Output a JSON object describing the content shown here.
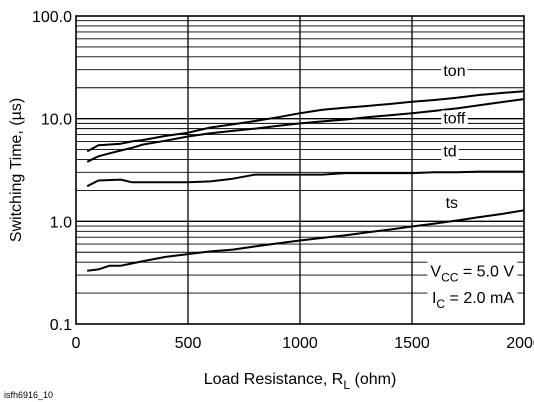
{
  "chart_data": {
    "type": "line",
    "xlabel": "Load Resistance, R",
    "xlabel_sub": "L",
    "xlabel_unit": " (ohm)",
    "ylabel": "Switching Time, (µs)",
    "xlim": [
      0,
      2000
    ],
    "ylim": [
      0.1,
      100
    ],
    "yscale": "log",
    "grid": true,
    "x_ticks": [
      "0",
      "500",
      "1000",
      "1500",
      "2000"
    ],
    "y_ticks": [
      "0.1",
      "1.0",
      "10.0",
      "100.0"
    ],
    "series": [
      {
        "name": "ton",
        "x": [
          50,
          100,
          150,
          200,
          250,
          300,
          400,
          500,
          600,
          700,
          800,
          900,
          1000,
          1100,
          1200,
          1300,
          1400,
          1500,
          1600,
          1700,
          1800,
          1900,
          2000
        ],
        "y": [
          4.8,
          5.5,
          5.6,
          5.7,
          6.0,
          6.2,
          6.8,
          7.3,
          8.2,
          8.8,
          9.5,
          10.3,
          11.3,
          12.2,
          12.8,
          13.3,
          13.9,
          14.6,
          15.2,
          16.0,
          17.0,
          17.8,
          18.5
        ]
      },
      {
        "name": "toff",
        "x": [
          50,
          100,
          150,
          200,
          250,
          300,
          400,
          500,
          600,
          700,
          800,
          900,
          1000,
          1100,
          1200,
          1300,
          1400,
          1500,
          1600,
          1700,
          1800,
          1900,
          2000
        ],
        "y": [
          3.8,
          4.3,
          4.6,
          4.9,
          5.2,
          5.6,
          6.1,
          6.7,
          7.2,
          7.6,
          8.0,
          8.5,
          9.0,
          9.4,
          9.8,
          10.3,
          10.8,
          11.3,
          11.9,
          12.6,
          13.5,
          14.5,
          15.5
        ]
      },
      {
        "name": "td",
        "x": [
          50,
          100,
          200,
          250,
          300,
          400,
          500,
          600,
          700,
          800,
          900,
          1000,
          1100,
          1200,
          1300,
          1400,
          1500,
          1600,
          1700,
          1800,
          1900,
          2000
        ],
        "y": [
          2.2,
          2.5,
          2.55,
          2.4,
          2.4,
          2.4,
          2.4,
          2.45,
          2.6,
          2.85,
          2.85,
          2.85,
          2.85,
          2.95,
          2.95,
          2.95,
          2.95,
          3.0,
          3.0,
          3.05,
          3.05,
          3.05
        ]
      },
      {
        "name": "ts",
        "x": [
          50,
          100,
          150,
          200,
          300,
          400,
          500,
          600,
          700,
          800,
          900,
          1000,
          1100,
          1200,
          1300,
          1400,
          1500,
          1600,
          1700,
          1800,
          1900,
          2000
        ],
        "y": [
          0.33,
          0.34,
          0.37,
          0.37,
          0.41,
          0.45,
          0.48,
          0.51,
          0.53,
          0.57,
          0.61,
          0.65,
          0.69,
          0.73,
          0.78,
          0.83,
          0.89,
          0.95,
          1.02,
          1.1,
          1.18,
          1.28
        ]
      }
    ],
    "series_labels": [
      {
        "text": "ton",
        "x": 1640,
        "y": 26
      },
      {
        "text": "toff",
        "x": 1640,
        "y": 9.0
      },
      {
        "text": "td",
        "x": 1640,
        "y": 4.3
      },
      {
        "text": "ts",
        "x": 1650,
        "y": 1.35
      }
    ],
    "annotation": {
      "vcc_main": "V",
      "vcc_sub": "CC",
      "vcc_rest": " = 5.0 V",
      "ic_main": "I",
      "ic_sub": "C",
      "ic_rest": " = 2.0 mA"
    },
    "footnote": "isfh6916_10"
  }
}
